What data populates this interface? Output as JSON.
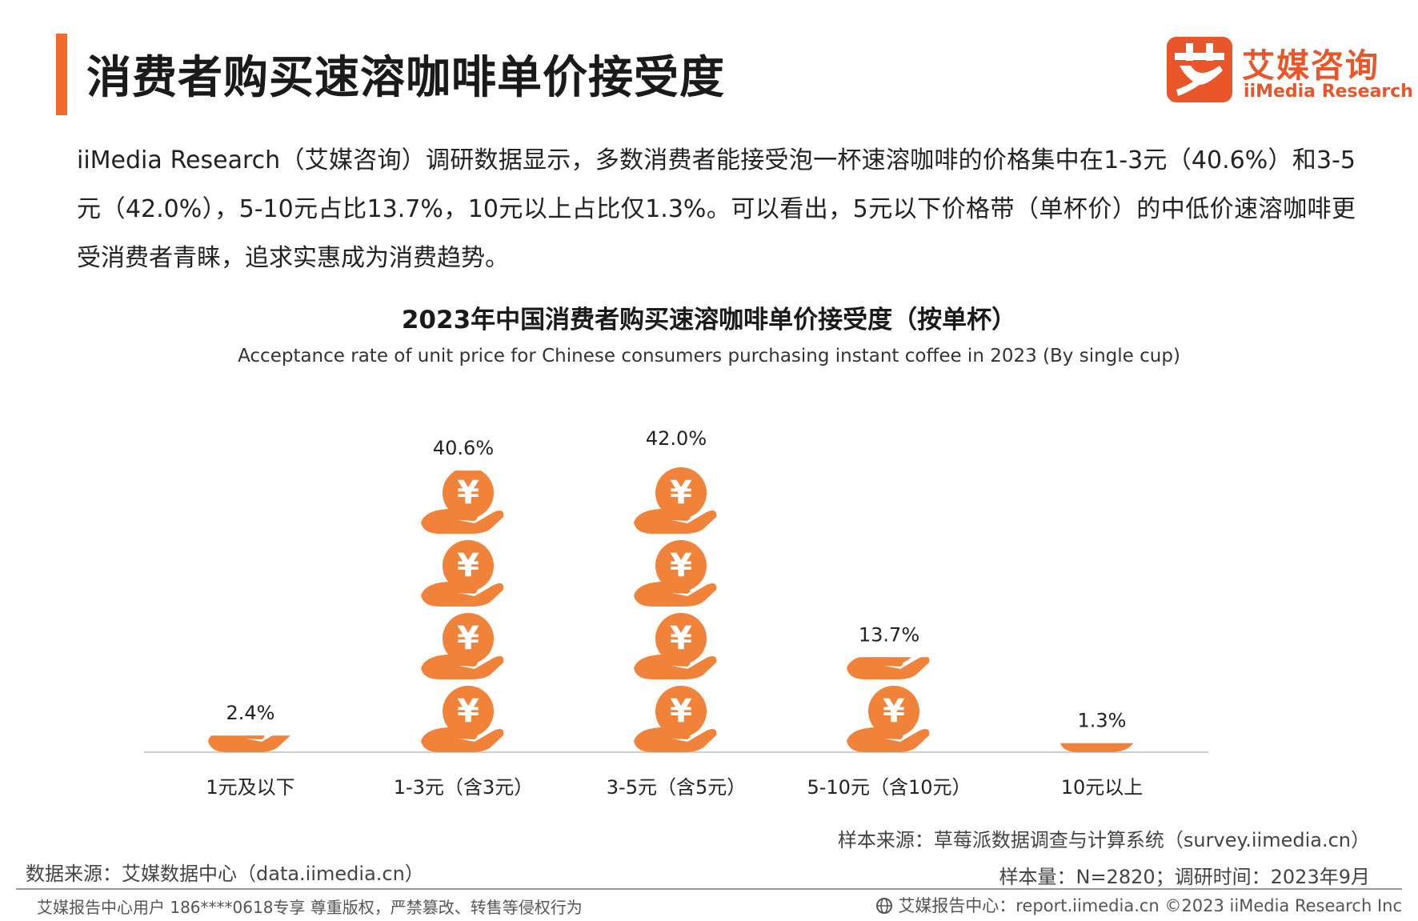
{
  "header": {
    "title": "消费者购买速溶咖啡单价接受度",
    "logo_cn": "艾媒咨询",
    "logo_en": "iiMedia Research"
  },
  "intro": "iiMedia Research（艾媒咨询）调研数据显示，多数消费者能接受泡一杯速溶咖啡的价格集中在1-3元（40.6%）和3-5元（42.0%），5-10元占比13.7%，10元以上占比仅1.3%。可以看出，5元以下价格带（单杯价）的中低价速溶咖啡更受消费者青睐，追求实惠成为消费趋势。",
  "chart_data": {
    "type": "bar",
    "title": "2023年中国消费者购买速溶咖啡单价接受度（按单杯）",
    "subtitle": "Acceptance rate of unit price for Chinese consumers purchasing instant coffee in 2023 (By single cup)",
    "categories": [
      "1元及以下",
      "1-3元（含3元）",
      "3-5元（含5元）",
      "5-10元（含10元）",
      "10元以上"
    ],
    "values": [
      2.4,
      40.6,
      42.0,
      13.7,
      1.3
    ],
    "labels": [
      "2.4%",
      "40.6%",
      "42.0%",
      "13.7%",
      "1.3%"
    ],
    "unit": "%",
    "ylim": [
      0,
      42.0
    ],
    "grid": false,
    "legend": "none",
    "icon": "coin-in-hand-icon",
    "bar_color": "#f0823a"
  },
  "sources": {
    "sample_source": "样本来源：草莓派数据调查与计算系统（survey.iimedia.cn）",
    "sample_info": "样本量：N=2820；调研时间：2023年9月",
    "data_source": "数据来源：艾媒数据中心（data.iimedia.cn）"
  },
  "footer": {
    "user_notice": "艾媒报告中心用户 186****0618专享 尊重版权，严禁篡改、转售等侵权行为",
    "report_center": "艾媒报告中心：report.iimedia.cn  ©2023  iiMedia Research  Inc"
  }
}
